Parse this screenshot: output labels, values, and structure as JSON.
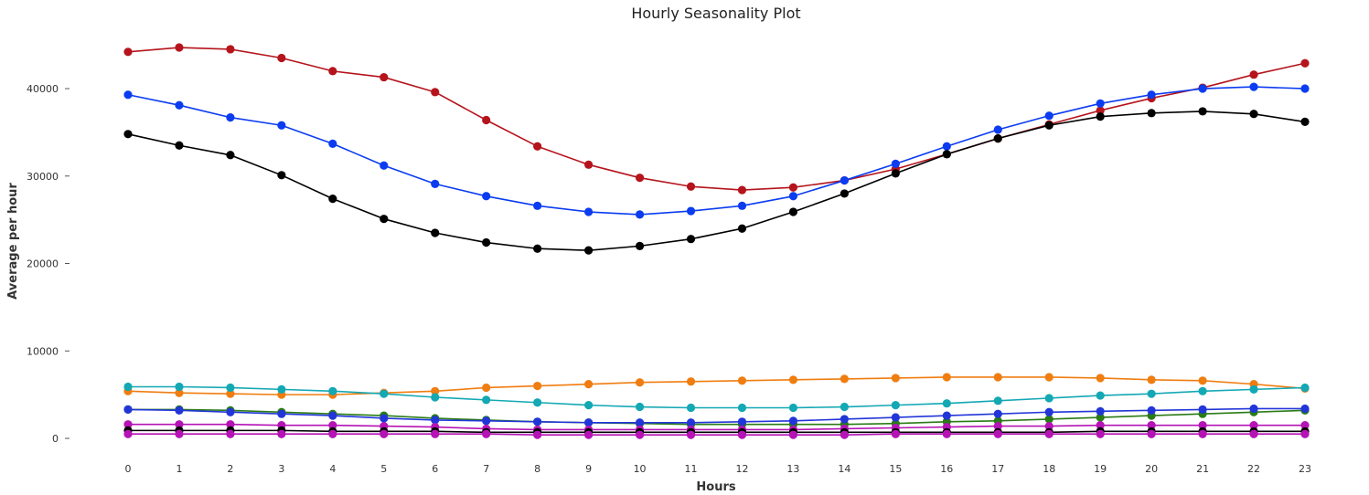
{
  "chart_data": {
    "type": "line",
    "title": "Hourly Seasonality Plot",
    "xlabel": "Hours",
    "ylabel": "Average per hour",
    "x": [
      0,
      1,
      2,
      3,
      4,
      5,
      6,
      7,
      8,
      9,
      10,
      11,
      12,
      13,
      14,
      15,
      16,
      17,
      18,
      19,
      20,
      21,
      22,
      23
    ],
    "xlim": [
      0,
      23
    ],
    "ylim": [
      0,
      47000
    ],
    "yticks": [
      0,
      10000,
      20000,
      30000,
      40000
    ],
    "grid": false,
    "legend": "none",
    "series": [
      {
        "color": "#b5141c",
        "values": [
          44200,
          44700,
          44500,
          43500,
          42000,
          41300,
          39600,
          36400,
          33400,
          31300,
          29800,
          28800,
          28400,
          28700,
          29500,
          30800,
          32500,
          34300,
          35900,
          37500,
          38900,
          40100,
          41600,
          42900
        ]
      },
      {
        "color": "#0b3cf0",
        "values": [
          39300,
          38100,
          36700,
          35800,
          33700,
          31200,
          29100,
          27700,
          26600,
          25900,
          25600,
          26000,
          26600,
          27700,
          29500,
          31400,
          33400,
          35300,
          36900,
          38300,
          39300,
          40000,
          40200,
          40000
        ]
      },
      {
        "color": "#000000",
        "values": [
          34800,
          33500,
          32400,
          30100,
          27400,
          25100,
          23500,
          22400,
          21700,
          21500,
          22000,
          22800,
          24000,
          25900,
          28000,
          30300,
          32500,
          34300,
          35800,
          36800,
          37200,
          37400,
          37100,
          36200
        ]
      },
      {
        "color": "#f07d10",
        "values": [
          5400,
          5200,
          5100,
          5000,
          5000,
          5200,
          5400,
          5800,
          6000,
          6200,
          6400,
          6500,
          6600,
          6700,
          6800,
          6900,
          7000,
          7000,
          7000,
          6900,
          6700,
          6600,
          6200,
          5700
        ]
      },
      {
        "color": "#13a8b4",
        "values": [
          5900,
          5900,
          5800,
          5600,
          5400,
          5100,
          4700,
          4400,
          4100,
          3800,
          3600,
          3500,
          3500,
          3500,
          3600,
          3800,
          4000,
          4300,
          4600,
          4900,
          5100,
          5400,
          5600,
          5800
        ]
      },
      {
        "color": "#2a7c16",
        "values": [
          3300,
          3300,
          3200,
          3000,
          2800,
          2600,
          2300,
          2100,
          1900,
          1800,
          1700,
          1600,
          1600,
          1600,
          1600,
          1700,
          1900,
          2000,
          2200,
          2400,
          2600,
          2800,
          3000,
          3200
        ]
      },
      {
        "color": "#2236d8",
        "values": [
          3300,
          3200,
          3000,
          2800,
          2600,
          2300,
          2100,
          2000,
          1900,
          1800,
          1800,
          1800,
          1900,
          2000,
          2200,
          2400,
          2600,
          2800,
          3000,
          3100,
          3200,
          3300,
          3400,
          3400
        ]
      },
      {
        "color": "#b513b5",
        "values": [
          1600,
          1600,
          1600,
          1500,
          1500,
          1400,
          1300,
          1100,
          1000,
          1000,
          1000,
          1000,
          1000,
          1000,
          1100,
          1200,
          1300,
          1400,
          1400,
          1500,
          1500,
          1500,
          1500,
          1500
        ]
      },
      {
        "color": "#000000",
        "values": [
          900,
          900,
          900,
          900,
          800,
          800,
          800,
          700,
          700,
          700,
          700,
          700,
          700,
          700,
          700,
          700,
          700,
          700,
          700,
          800,
          800,
          800,
          800,
          800
        ]
      },
      {
        "color": "#b513b5",
        "values": [
          500,
          500,
          500,
          500,
          500,
          500,
          500,
          500,
          400,
          400,
          400,
          400,
          400,
          400,
          400,
          500,
          500,
          500,
          500,
          500,
          500,
          500,
          500,
          500
        ]
      }
    ]
  }
}
